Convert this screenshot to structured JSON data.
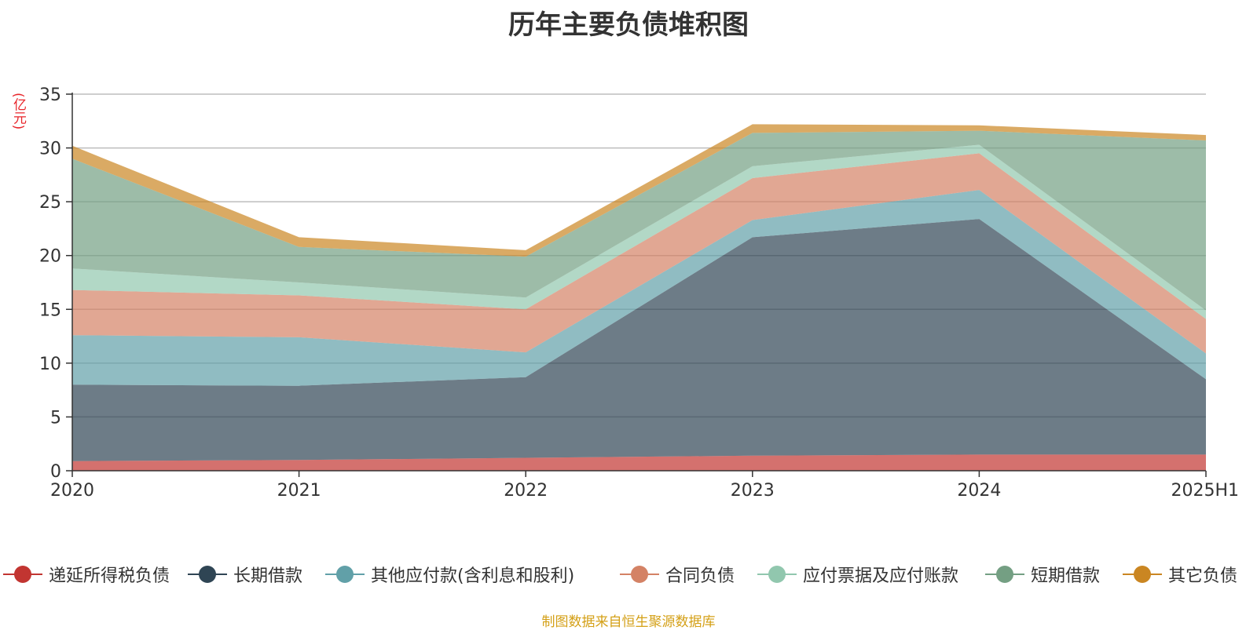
{
  "chart_data": {
    "type": "area",
    "stacked": true,
    "title": "历年主要负债堆积图",
    "ylabel": "(亿元)",
    "xlabel": "",
    "categories": [
      "2020",
      "2021",
      "2022",
      "2023",
      "2024",
      "2025H1"
    ],
    "ylim": [
      0,
      35
    ],
    "yticks": [
      0,
      5,
      10,
      15,
      20,
      25,
      30,
      35
    ],
    "grid": true,
    "legend_position": "bottom",
    "series": [
      {
        "name": "递延所得税负债",
        "color": "#c23531",
        "values": [
          0.9,
          1.0,
          1.2,
          1.4,
          1.5,
          1.5
        ]
      },
      {
        "name": "长期借款",
        "color": "#2f4554",
        "values": [
          7.1,
          6.9,
          7.5,
          20.3,
          21.9,
          7.0
        ]
      },
      {
        "name": "其他应付款(含利息和股利)",
        "color": "#61a0a8",
        "values": [
          4.6,
          4.5,
          2.3,
          1.6,
          2.7,
          2.4
        ]
      },
      {
        "name": "合同负债",
        "color": "#d48265",
        "values": [
          4.2,
          3.9,
          4.0,
          3.9,
          3.4,
          3.2
        ]
      },
      {
        "name": "应付票据及应付账款",
        "color": "#91c7ae",
        "values": [
          2.0,
          1.2,
          1.1,
          1.1,
          0.8,
          0.8
        ]
      },
      {
        "name": "短期借款",
        "color": "#749f83",
        "values": [
          10.2,
          3.3,
          3.8,
          3.1,
          1.3,
          15.8
        ]
      },
      {
        "name": "其它负债",
        "color": "#ca8622",
        "values": [
          1.2,
          0.9,
          0.6,
          0.8,
          0.5,
          0.5
        ]
      }
    ]
  },
  "source_note": "制图数据来自恒生聚源数据库"
}
